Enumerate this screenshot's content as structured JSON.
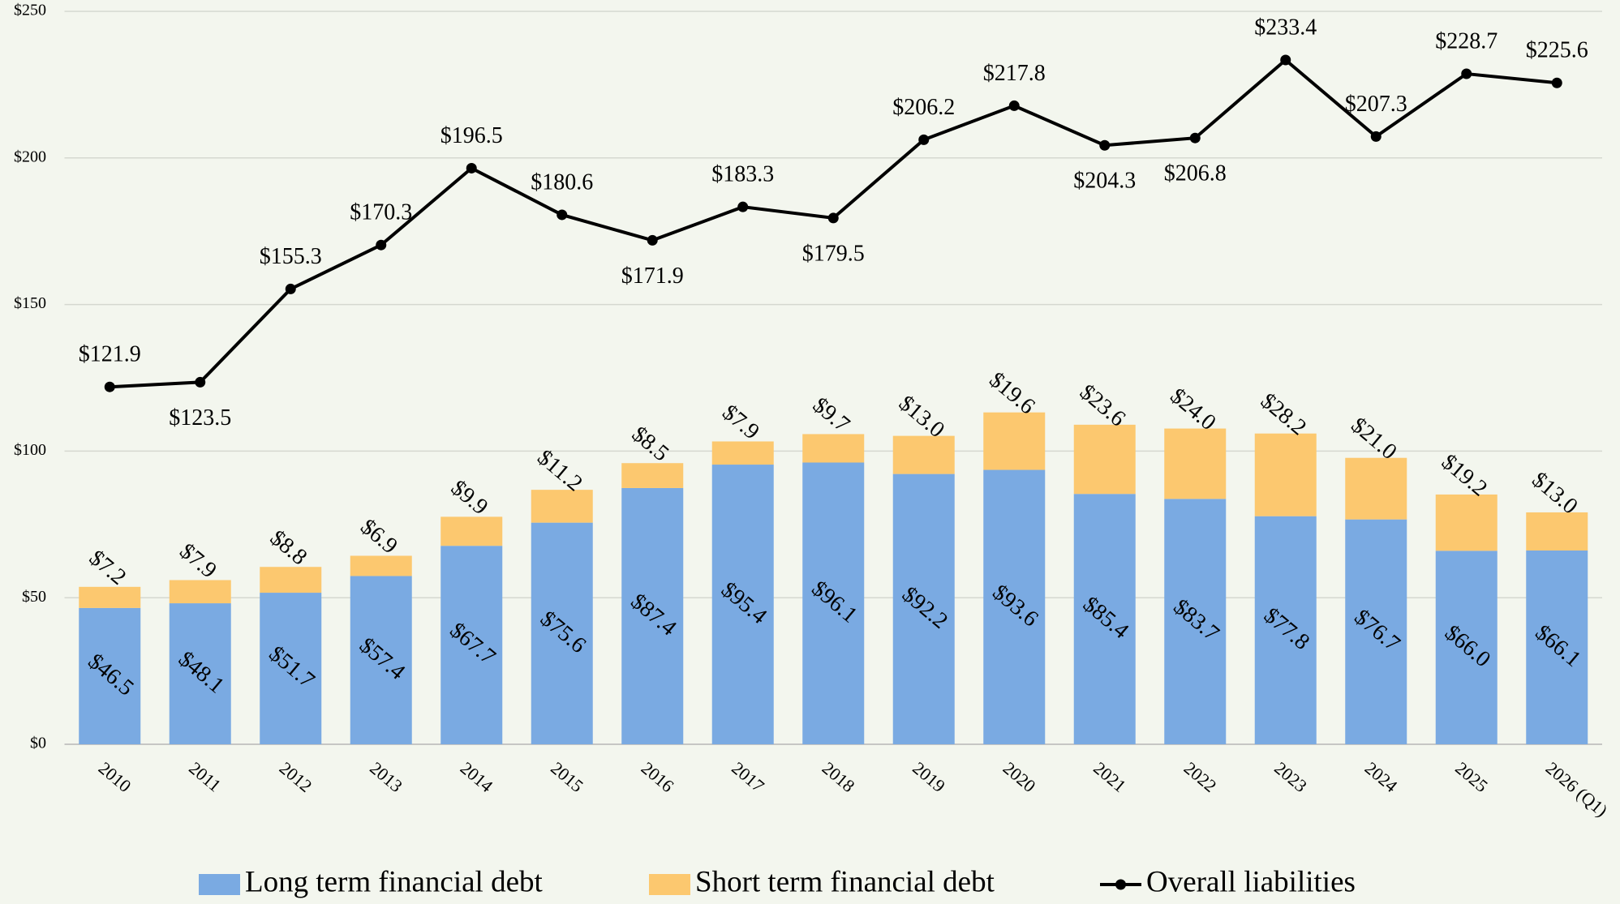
{
  "chart_data": {
    "type": "stacked-bar-line",
    "categories": [
      "2010",
      "2011",
      "2012",
      "2013",
      "2014",
      "2015",
      "2016",
      "2017",
      "2018",
      "2019",
      "2020",
      "2021",
      "2022",
      "2023",
      "2024",
      "2025",
      "2026 (Q1)"
    ],
    "series": [
      {
        "name": "Long term financial debt",
        "type": "bar",
        "color": "#7aaae2",
        "values": [
          46.5,
          48.1,
          51.7,
          57.4,
          67.7,
          75.6,
          87.4,
          95.4,
          96.1,
          92.2,
          93.6,
          85.4,
          83.7,
          77.8,
          76.7,
          66.0,
          66.1
        ],
        "value_labels": [
          "$46.5",
          "$48.1",
          "$51.7",
          "$57.4",
          "$67.7",
          "$75.6",
          "$87.4",
          "$95.4",
          "$96.1",
          "$92.2",
          "$93.6",
          "$85.4",
          "$83.7",
          "$77.8",
          "$76.7",
          "$66.0",
          "$66.1"
        ]
      },
      {
        "name": "Short term financial debt",
        "type": "bar",
        "color": "#fcc86f",
        "values": [
          7.2,
          7.9,
          8.8,
          6.9,
          9.9,
          11.2,
          8.5,
          7.9,
          9.7,
          13.0,
          19.6,
          23.6,
          24.0,
          28.2,
          21.0,
          19.2,
          13.0
        ],
        "value_labels": [
          "$7.2",
          "$7.9",
          "$8.8",
          "$6.9",
          "$9.9",
          "$11.2",
          "$8.5",
          "$7.9",
          "$9.7",
          "$13.0",
          "$19.6",
          "$23.6",
          "$24.0",
          "$28.2",
          "$21.0",
          "$19.2",
          "$13.0"
        ]
      },
      {
        "name": "Overall liabilities",
        "type": "line",
        "color": "#000000",
        "values": [
          121.9,
          123.5,
          155.3,
          170.3,
          196.5,
          180.6,
          171.9,
          183.3,
          179.5,
          206.2,
          217.8,
          204.3,
          206.8,
          233.4,
          207.3,
          228.7,
          225.6
        ],
        "value_labels": [
          "$121.9",
          "$123.5",
          "$155.3",
          "$170.3",
          "$196.5",
          "$180.6",
          "$171.9",
          "$183.3",
          "$179.5",
          "$206.2",
          "$217.8",
          "$204.3",
          "$206.8",
          "$233.4",
          "$207.3",
          "$228.7",
          "$225.6"
        ]
      }
    ],
    "ylim": [
      0,
      250
    ],
    "yticks": [
      {
        "value": 0,
        "label": "$0"
      },
      {
        "value": 50,
        "label": "$50"
      },
      {
        "value": 100,
        "label": "$100"
      },
      {
        "value": 150,
        "label": "$150"
      },
      {
        "value": 200,
        "label": "$200"
      },
      {
        "value": 250,
        "label": "$250"
      }
    ],
    "grid": true,
    "legend": "bottom"
  }
}
